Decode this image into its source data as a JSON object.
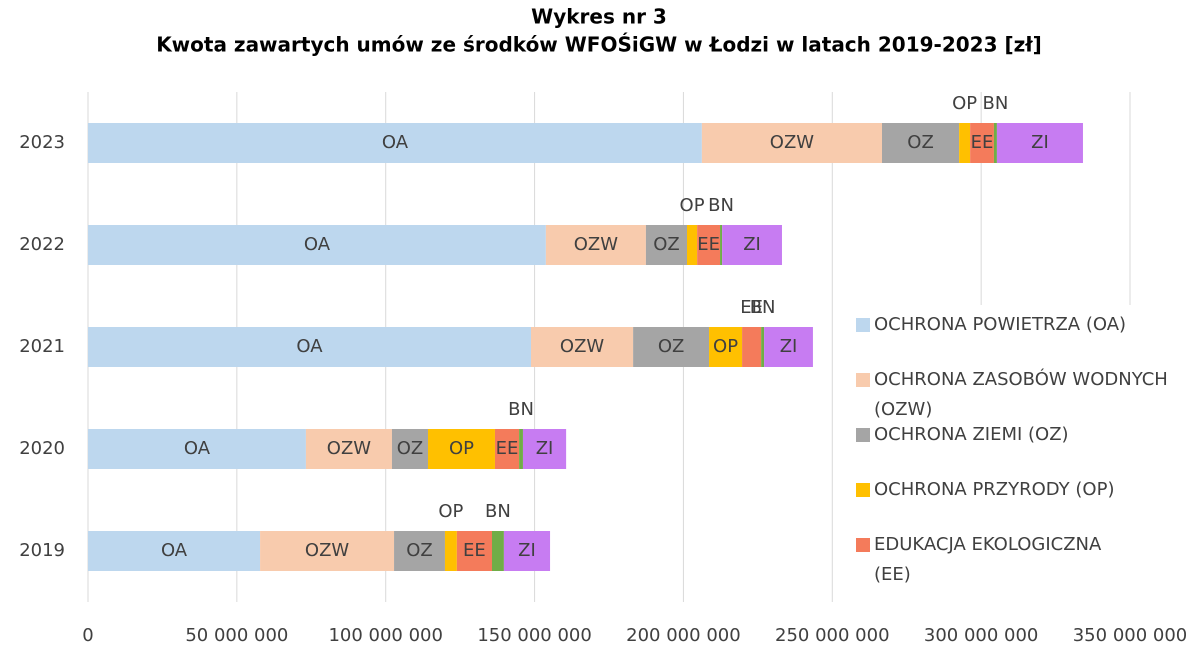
{
  "chart_data": {
    "type": "stacked-bar-horizontal",
    "title": "Wykres nr 3",
    "subtitle": "Kwota zawartych umów ze środków WFOŚiGW w Łodzi w latach 2019-2023 [zł]",
    "categories": [
      "2023",
      "2022",
      "2021",
      "2020",
      "2019"
    ],
    "series": [
      {
        "name": "OCHRONA POWIETRZA (OA)",
        "label": "OA",
        "color": "#bdd7ee",
        "values": [
          206200000,
          153800000,
          148800000,
          73200000,
          57800000
        ]
      },
      {
        "name": "OCHRONA ZASOBÓW WODNYCH (OZW)",
        "label": "OZW",
        "color": "#f8cbad",
        "values": [
          60500000,
          33600000,
          34300000,
          28900000,
          45000000
        ]
      },
      {
        "name": "OCHRONA ZIEMI (OZ)",
        "label": "OZ",
        "color": "#a5a5a5",
        "values": [
          25900000,
          13800000,
          25500000,
          12100000,
          17100000
        ]
      },
      {
        "name": "OCHRONA PRZYRODY (OP)",
        "label": "OP",
        "color": "#ffc000",
        "values": [
          3700000,
          3400000,
          11100000,
          22500000,
          4000000
        ]
      },
      {
        "name": "EDUKACJA EKOLOGICZNA (EE)",
        "label": "EE",
        "color": "#f47b5b",
        "values": [
          8000000,
          7700000,
          6400000,
          8100000,
          11800000
        ]
      },
      {
        "label": "BN",
        "color": "#70ad47",
        "values": [
          1000000,
          700000,
          1000000,
          1300000,
          4000000
        ]
      },
      {
        "label": "ZI",
        "color": "#c77cf2",
        "values": [
          28900000,
          20100000,
          16400000,
          14500000,
          15500000
        ]
      }
    ],
    "xlim": [
      0,
      350000000
    ],
    "xticks": [
      0,
      {
        "value": 50000000,
        "label": "50 000 000"
      },
      {
        "value": 100000000,
        "label": "100 000 000"
      },
      {
        "value": 150000000,
        "label": "150 000 000"
      },
      {
        "value": 200000000,
        "label": "200 000 000"
      },
      {
        "value": 250000000,
        "label": "250 000 000"
      },
      {
        "value": 300000000,
        "label": "300 000 000"
      },
      {
        "value": 350000000,
        "label": "350 000 000"
      }
    ],
    "grid": true
  }
}
